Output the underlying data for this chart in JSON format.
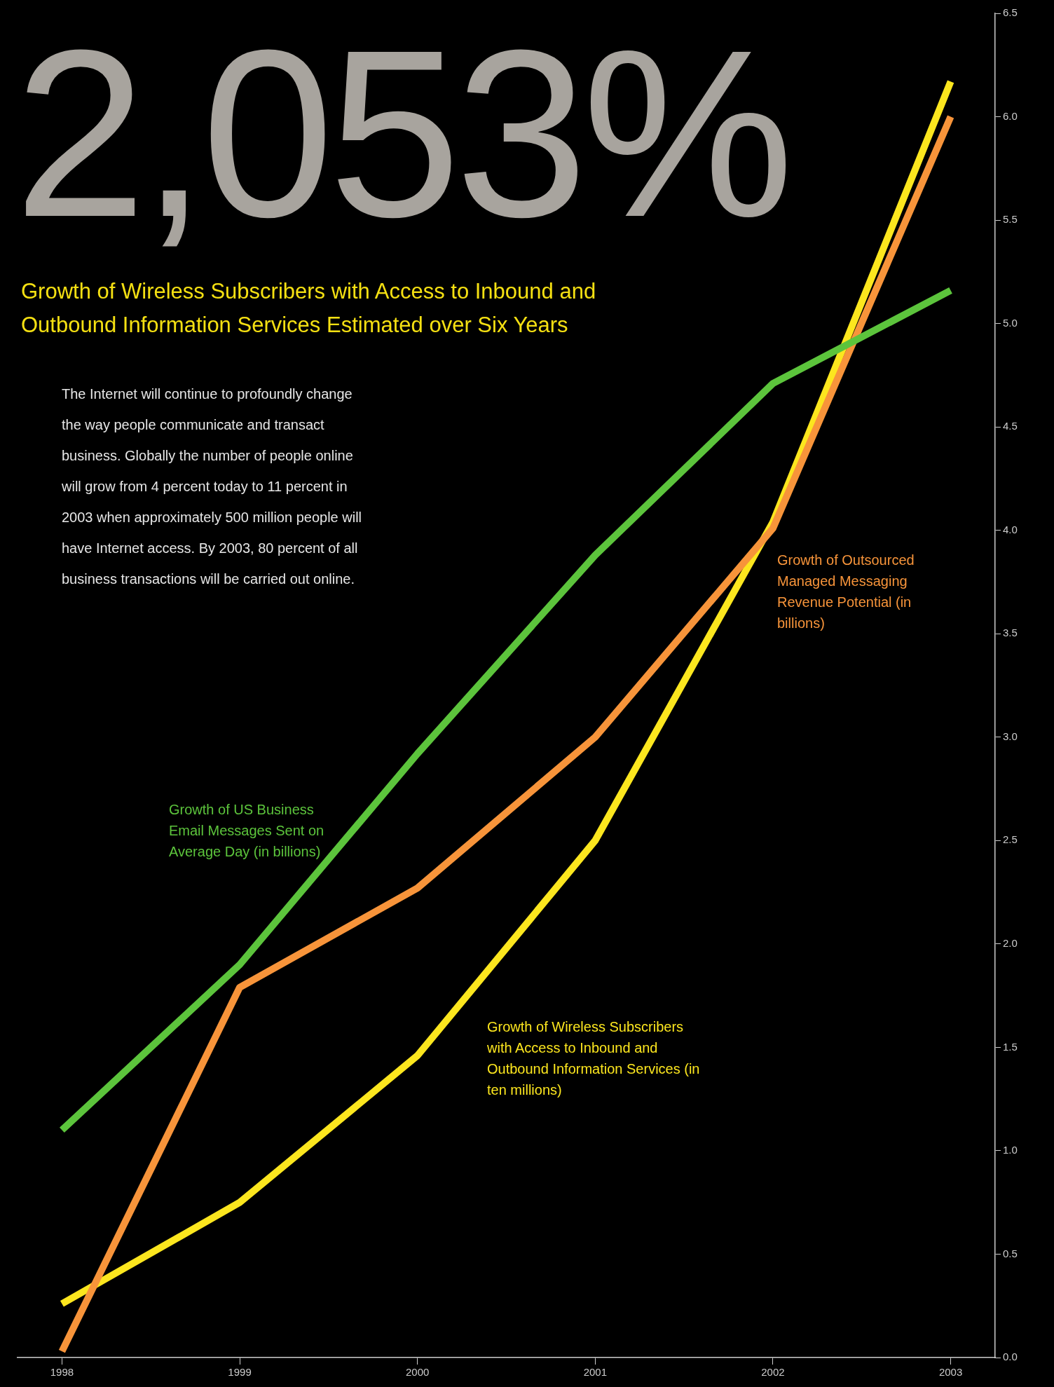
{
  "chart_data": {
    "type": "line",
    "title": "2,053%",
    "subtitle": "Growth of Wireless Subscribers with Access to Inbound and Outbound Information Services Estimated over Six Years",
    "annotations": [
      "The Internet will continue to profoundly change the way people communicate and transact business. Globally the number of people online will grow from 4 percent today to 11 percent in 2003 when approximately 500 million people will have Internet access. By 2003, 80 percent of all business transactions will be carried out online."
    ],
    "x": [
      1998,
      1999,
      2000,
      2001,
      2002,
      2003
    ],
    "xlim": [
      1997.75,
      2003.25
    ],
    "xticks": [
      1998,
      1999,
      2000,
      2001,
      2002,
      2003
    ],
    "ylim": [
      0,
      6.5
    ],
    "yticks": [
      {
        "value": 0,
        "label": "0.0"
      },
      {
        "value": 0.5,
        "label": "0.5"
      },
      {
        "value": 1,
        "label": "1.0"
      },
      {
        "value": 1.5,
        "label": "1.5"
      },
      {
        "value": 2,
        "label": "2.0"
      },
      {
        "value": 2.5,
        "label": "2.5"
      },
      {
        "value": 3,
        "label": "3.0"
      },
      {
        "value": 3.5,
        "label": "3.5"
      },
      {
        "value": 4,
        "label": "4.0"
      },
      {
        "value": 4.5,
        "label": "4.5"
      },
      {
        "value": 5,
        "label": "5.0"
      },
      {
        "value": 5.5,
        "label": "5.5"
      },
      {
        "value": 6,
        "label": "6.0"
      },
      {
        "value": 6.5,
        "label": "6.5"
      }
    ],
    "series": [
      {
        "name": "Growth of US Business Email Messages Sent on Average Day (in billions)",
        "color": "#5cc43c",
        "values": [
          1.1,
          1.9,
          2.92,
          3.88,
          4.71,
          5.16
        ]
      },
      {
        "name": "Growth of Outsourced Managed Messaging Revenue Potential (in billions)",
        "color": "#f7943a",
        "values": [
          0.03,
          1.79,
          2.27,
          3.0,
          4.01,
          6.0
        ]
      },
      {
        "name": "Growth of Wireless Subscribers with Access to Inbound and Outbound Information Services (in ten millions)",
        "color": "#fce61e",
        "values": [
          0.26,
          0.75,
          1.46,
          2.5,
          4.04,
          6.17
        ]
      }
    ],
    "grid": false,
    "legend": false,
    "marker": "none",
    "line_style": "solid"
  }
}
